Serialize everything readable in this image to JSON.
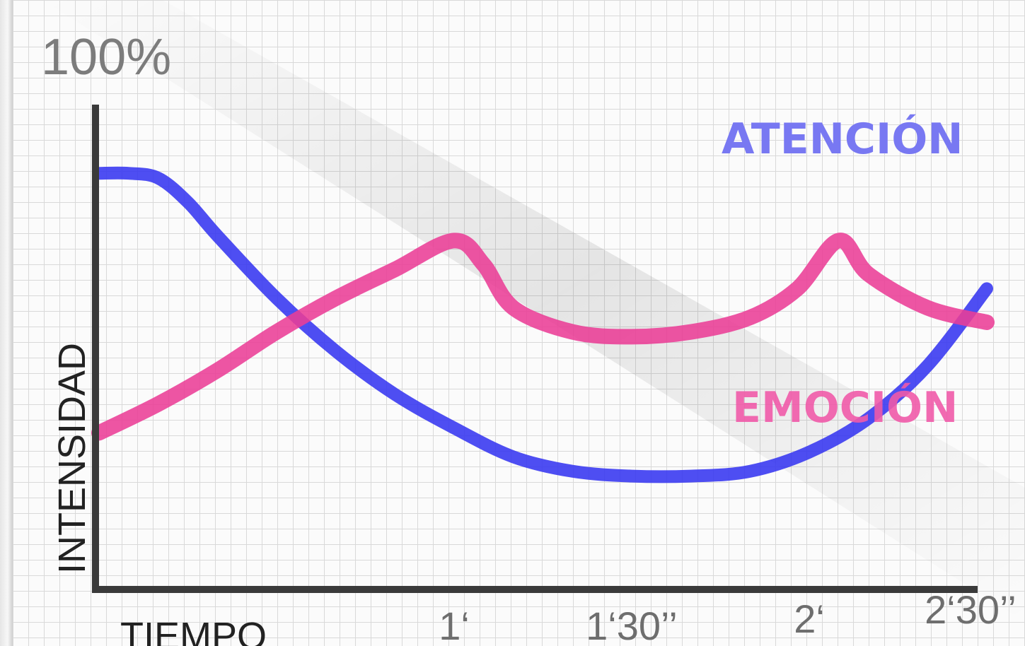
{
  "chart_data": {
    "type": "line",
    "title": "",
    "ylabel": "INTENSIDAD",
    "ymax_label": "100%",
    "xlabel": "TIEMPO",
    "x_ticks": [
      "1‘",
      "1‘30’’",
      "2‘",
      "2‘30’’"
    ],
    "x_tick_seconds": [
      60,
      90,
      120,
      150
    ],
    "xlim": [
      0,
      150
    ],
    "ylim": [
      0,
      100
    ],
    "series": [
      {
        "name": "ATENCIÓN",
        "color": "#3535f0",
        "x": [
          0,
          5,
          10,
          15,
          20,
          30,
          40,
          50,
          60,
          70,
          80,
          90,
          100,
          110,
          120,
          130,
          140,
          150
        ],
        "y": [
          86,
          86,
          85,
          80,
          73,
          60,
          49,
          40,
          33,
          27,
          24,
          23,
          23,
          24,
          28,
          35,
          46,
          62
        ]
      },
      {
        "name": "EMOCIÓN",
        "color": "#ea3d96",
        "x": [
          0,
          10,
          20,
          30,
          40,
          50,
          60,
          65,
          70,
          80,
          90,
          100,
          110,
          118,
          125,
          130,
          140,
          150
        ],
        "y": [
          32,
          38,
          45,
          53,
          60,
          66,
          72,
          67,
          58,
          53,
          52,
          53,
          56,
          62,
          72,
          65,
          58,
          55
        ]
      }
    ]
  }
}
